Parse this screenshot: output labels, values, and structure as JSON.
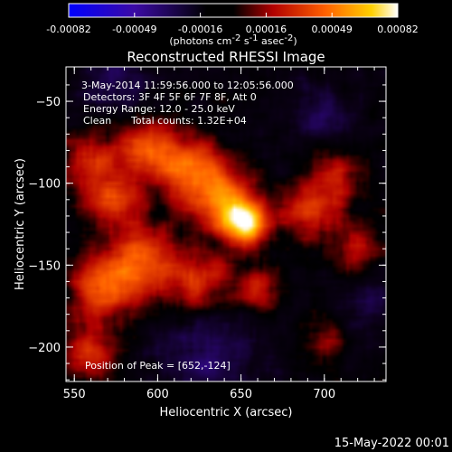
{
  "chart_data": {
    "type": "heatmap",
    "title": "Reconstructed RHESSI Image",
    "xlabel": "Heliocentric X (arcsec)",
    "ylabel": "Heliocentric Y (arcsec)",
    "xlim": [
      545,
      737
    ],
    "ylim": [
      -221,
      -29
    ],
    "x_ticks": [
      550,
      600,
      650,
      700
    ],
    "y_ticks": [
      -50,
      -100,
      -150,
      -200
    ],
    "colorbar": {
      "ticks": [
        "-0.00082",
        "-0.00049",
        "-0.00016",
        "0.00016",
        "0.00049",
        "0.00082"
      ],
      "range": [
        -0.00082,
        0.00082
      ],
      "unit_text": "(photons cm",
      "unit_sup1": "-2",
      "unit_mid1": " s",
      "unit_sup2": "-1",
      "unit_mid2": " asec",
      "unit_sup3": "-2",
      "unit_close": ")"
    },
    "annotations": {
      "time_range": "3-May-2014 11:59:56.000 to 12:05:56.000",
      "detectors": "Detectors: 3F 4F 5F 6F 7F 8F, Att 0",
      "energy": "Energy Range: 12.0 - 25.0 keV",
      "algorithm": "Clean",
      "total_counts": "Total counts: 1.32E+04",
      "peak": "Position of Peak = [652,-124]"
    },
    "peak": [
      652,
      -124
    ],
    "sources": [
      {
        "x": 652,
        "y": -124,
        "sigma": 9,
        "amp": 0.00086
      },
      {
        "x": 637,
        "y": -108,
        "sigma": 14,
        "amp": 0.0005
      },
      {
        "x": 617,
        "y": -90,
        "sigma": 15,
        "amp": 0.00045
      },
      {
        "x": 592,
        "y": -78,
        "sigma": 13,
        "amp": 0.0004
      },
      {
        "x": 572,
        "y": -108,
        "sigma": 12,
        "amp": 0.00042
      },
      {
        "x": 556,
        "y": -85,
        "sigma": 11,
        "amp": 0.00035
      },
      {
        "x": 590,
        "y": -148,
        "sigma": 16,
        "amp": 0.0005
      },
      {
        "x": 565,
        "y": -165,
        "sigma": 14,
        "amp": 0.00043
      },
      {
        "x": 560,
        "y": -205,
        "sigma": 12,
        "amp": 0.00038
      },
      {
        "x": 625,
        "y": -160,
        "sigma": 13,
        "amp": 0.00038
      },
      {
        "x": 660,
        "y": -165,
        "sigma": 10,
        "amp": 0.00036
      },
      {
        "x": 690,
        "y": -118,
        "sigma": 12,
        "amp": 0.0004
      },
      {
        "x": 705,
        "y": -95,
        "sigma": 12,
        "amp": 0.00035
      },
      {
        "x": 720,
        "y": -140,
        "sigma": 12,
        "amp": 0.0003
      },
      {
        "x": 700,
        "y": -195,
        "sigma": 10,
        "amp": 0.00022
      },
      {
        "x": 700,
        "y": -60,
        "sigma": 12,
        "amp": -0.0002
      },
      {
        "x": 630,
        "y": -205,
        "sigma": 20,
        "amp": -0.00022
      },
      {
        "x": 575,
        "y": -40,
        "sigma": 14,
        "amp": -0.00018
      },
      {
        "x": 730,
        "y": -170,
        "sigma": 14,
        "amp": -0.00015
      }
    ]
  },
  "footer": {
    "date": "15-May-2022 00:01"
  }
}
